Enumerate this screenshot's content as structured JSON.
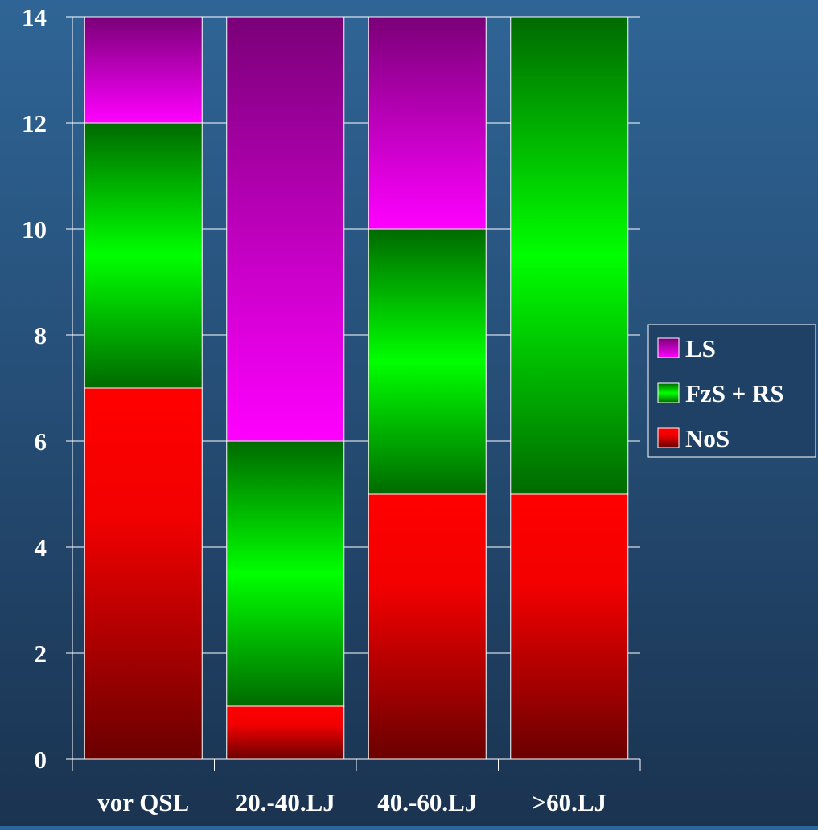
{
  "chart_data": {
    "type": "bar",
    "stacked": true,
    "categories": [
      "vor QSL",
      "20.-40.LJ",
      "40.-60.LJ",
      ">60.LJ"
    ],
    "series": [
      {
        "name": "NoS",
        "values": [
          7,
          1,
          5,
          5
        ]
      },
      {
        "name": "FzS + RS",
        "values": [
          5,
          5,
          5,
          9
        ]
      },
      {
        "name": "LS",
        "values": [
          2,
          8,
          4,
          0
        ]
      }
    ],
    "ylim": [
      0,
      14
    ],
    "yticks": [
      0,
      2,
      4,
      6,
      8,
      10,
      12,
      14
    ],
    "grid": true,
    "legend_position": "right",
    "legend_order": [
      "LS",
      "FzS + RS",
      "NoS"
    ],
    "colors": {
      "NoS": {
        "top": "#ff0000",
        "bottom": "#6a0000"
      },
      "FzS + RS": {
        "mid": "#00ff00",
        "edge": "#006a00"
      },
      "LS": {
        "top": "#7a0078",
        "bottom": "#ff00ff"
      },
      "background_top": "#2f6596",
      "background_bottom": "#1a3350",
      "axis": "#ffffff"
    }
  }
}
